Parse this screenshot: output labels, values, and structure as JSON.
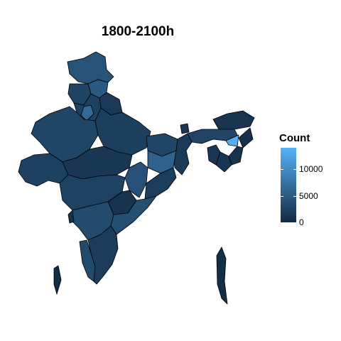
{
  "title": "1800-2100h",
  "legend": {
    "title": "Count",
    "min": 0,
    "max": 14000,
    "ticks": [
      {
        "value": 0,
        "label": "0"
      },
      {
        "value": 5000,
        "label": "5000"
      },
      {
        "value": 10000,
        "label": "10000"
      }
    ],
    "colors": {
      "low": "#132B43",
      "high": "#56B1F7"
    }
  },
  "chart_data": {
    "type": "choropleth",
    "regions": [
      {
        "name": "Jammu & Kashmir",
        "count": 4200
      },
      {
        "name": "Himachal Pradesh",
        "count": 4800
      },
      {
        "name": "Punjab",
        "count": 2600
      },
      {
        "name": "Uttarakhand",
        "count": 1500
      },
      {
        "name": "Haryana",
        "count": 2300
      },
      {
        "name": "Delhi",
        "count": 6500
      },
      {
        "name": "Rajasthan",
        "count": 2800
      },
      {
        "name": "Uttar Pradesh",
        "count": 2100
      },
      {
        "name": "Bihar",
        "count": 2900
      },
      {
        "name": "Sikkim",
        "count": 1200
      },
      {
        "name": "Arunachal Pradesh",
        "count": 1000
      },
      {
        "name": "Assam",
        "count": 2700
      },
      {
        "name": "Meghalaya",
        "count": 13500
      },
      {
        "name": "Nagaland",
        "count": 600
      },
      {
        "name": "Manipur",
        "count": 900
      },
      {
        "name": "Mizoram",
        "count": 1100
      },
      {
        "name": "Tripura",
        "count": 1300
      },
      {
        "name": "West Bengal",
        "count": 1600
      },
      {
        "name": "Jharkhand",
        "count": 5600
      },
      {
        "name": "Gujarat",
        "count": 2300
      },
      {
        "name": "Madhya Pradesh",
        "count": 1200
      },
      {
        "name": "Chhattisgarh",
        "count": 3900
      },
      {
        "name": "Odisha",
        "count": 1900
      },
      {
        "name": "Maharashtra",
        "count": 2400
      },
      {
        "name": "Telangana",
        "count": 800
      },
      {
        "name": "Andhra Pradesh",
        "count": 3700
      },
      {
        "name": "Karnataka",
        "count": 3300
      },
      {
        "name": "Goa",
        "count": 700
      },
      {
        "name": "Kerala",
        "count": 3200
      },
      {
        "name": "Tamil Nadu",
        "count": 1800
      },
      {
        "name": "Andaman & Nicobar Islands",
        "count": 300
      },
      {
        "name": "Lakshadweep",
        "count": 100
      }
    ]
  }
}
